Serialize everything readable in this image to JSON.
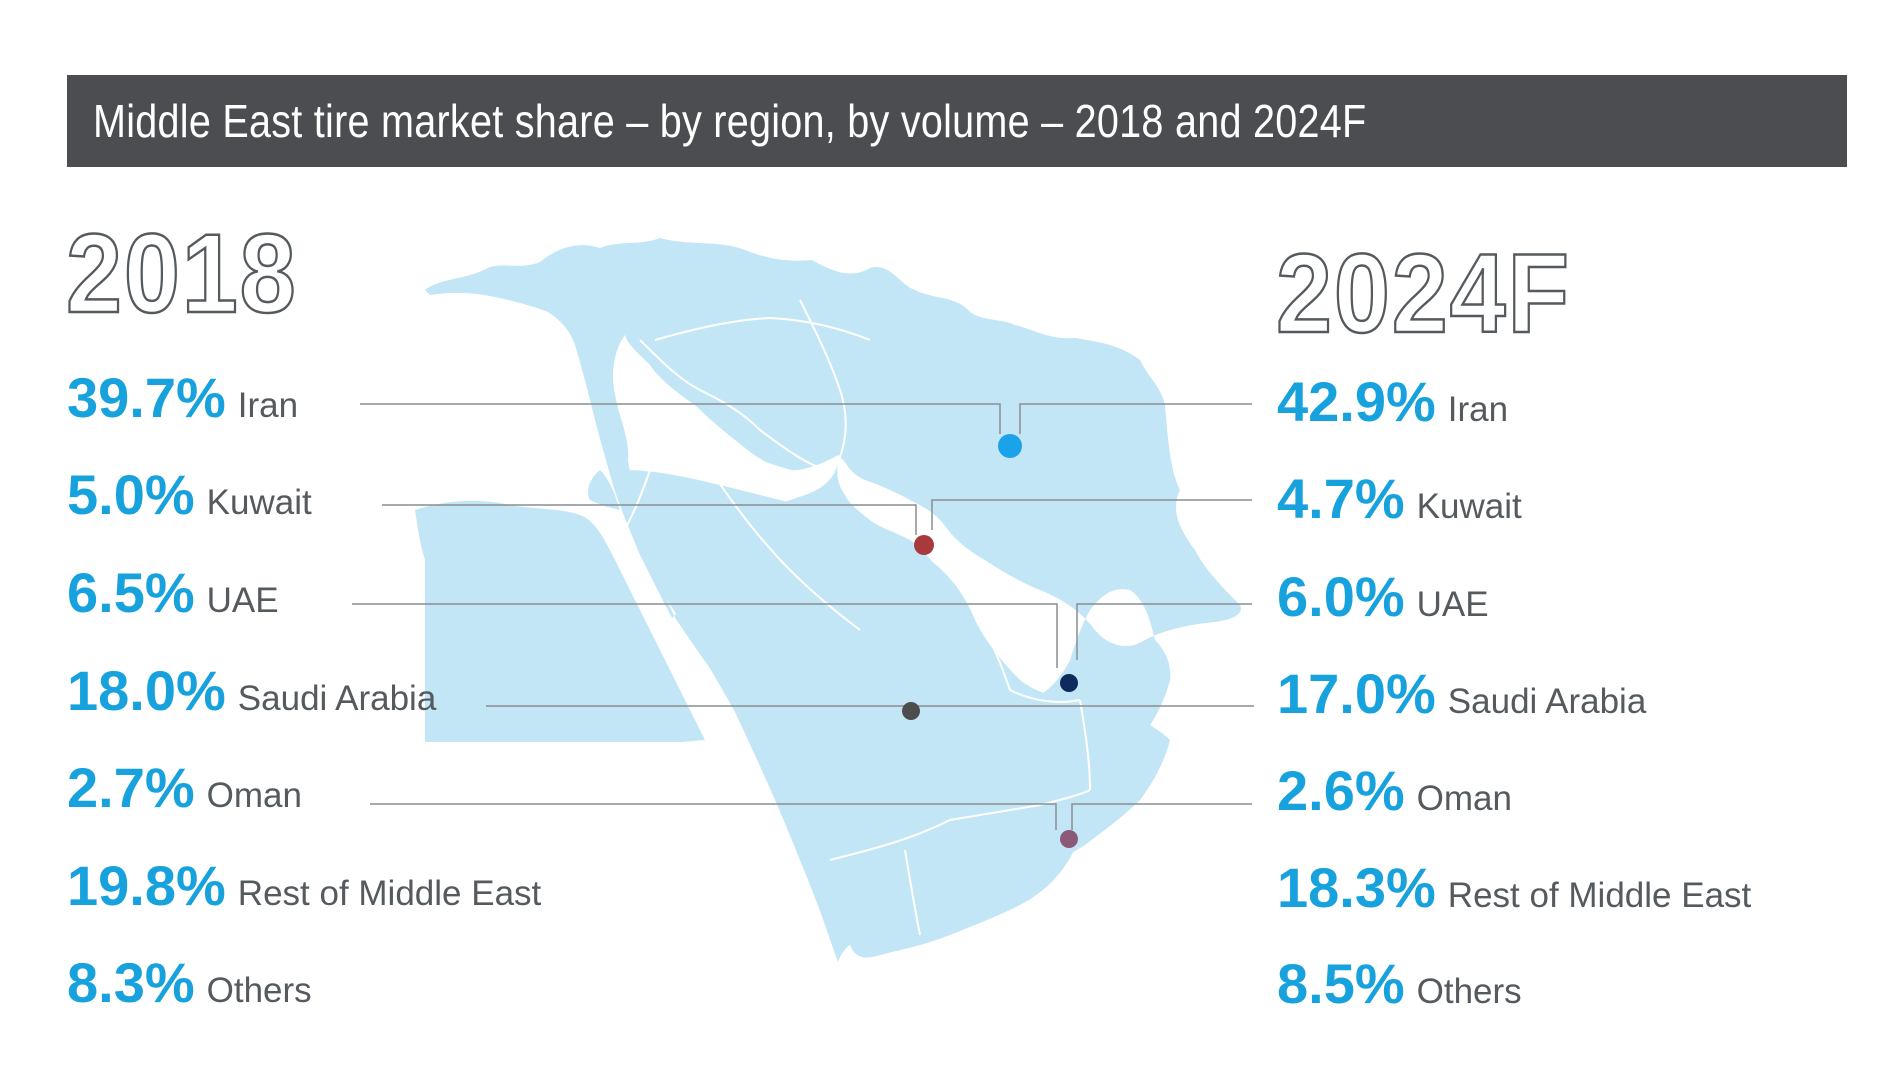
{
  "title": "Middle East tire market share – by region, by volume – 2018 and 2024F",
  "left_panel": {
    "year": "2018",
    "rows": [
      {
        "pct": "39.7%",
        "label": "Iran"
      },
      {
        "pct": "5.0%",
        "label": "Kuwait"
      },
      {
        "pct": "6.5%",
        "label": "UAE"
      },
      {
        "pct": "18.0%",
        "label": "Saudi Arabia"
      },
      {
        "pct": "2.7%",
        "label": "Oman"
      },
      {
        "pct": "19.8%",
        "label": "Rest of Middle East"
      },
      {
        "pct": "8.3%",
        "label": "Others"
      }
    ]
  },
  "right_panel": {
    "year": "2024F",
    "rows": [
      {
        "pct": "42.9%",
        "label": "Iran"
      },
      {
        "pct": "4.7%",
        "label": "Kuwait"
      },
      {
        "pct": "6.0%",
        "label": "UAE"
      },
      {
        "pct": "17.0%",
        "label": "Saudi Arabia"
      },
      {
        "pct": "2.6%",
        "label": "Oman"
      },
      {
        "pct": "18.3%",
        "label": "Rest of Middle East"
      },
      {
        "pct": "8.5%",
        "label": "Others"
      }
    ]
  },
  "markers": [
    {
      "country": "Iran",
      "color": "#1aa3e8"
    },
    {
      "country": "Kuwait",
      "color": "#a83a3e"
    },
    {
      "country": "UAE",
      "color": "#0f2a5c"
    },
    {
      "country": "Saudi Arabia",
      "color": "#4d4d4d"
    },
    {
      "country": "Oman",
      "color": "#8c5a78"
    }
  ],
  "colors": {
    "title_bar": "#4b4d50",
    "percent_text": "#17a2dd",
    "label_text": "#555a5e",
    "land": "#c3e6f7",
    "border_lines": "#ffffff",
    "leader_lines": "#8a8d90"
  }
}
